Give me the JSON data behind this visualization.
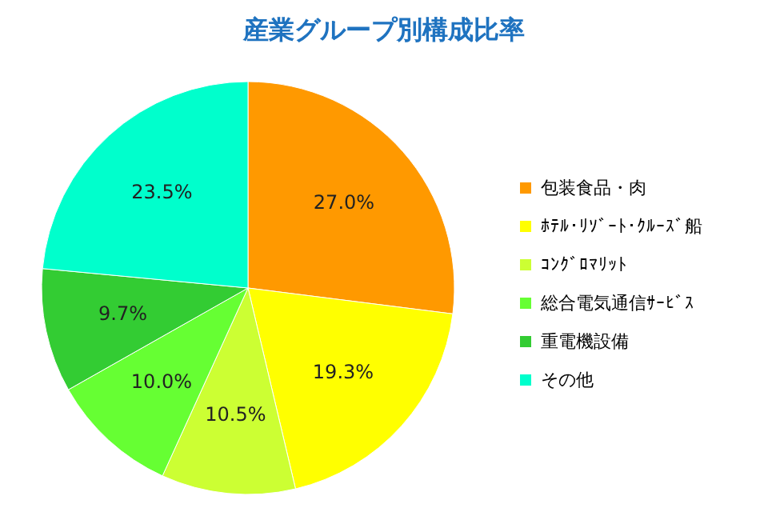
{
  "chart_data": {
    "type": "pie",
    "title": "産業グループ別構成比率",
    "categories": [
      "包装食品・肉",
      "ﾎﾃﾙ･ﾘｿﾞｰﾄ･ｸﾙｰｽﾞ船",
      "ｺﾝｸﾞﾛﾏﾘｯﾄ",
      "総合電気通信ｻｰﾋﾞｽ",
      "重電機設備",
      "その他"
    ],
    "values": [
      27.0,
      19.3,
      10.5,
      10.0,
      9.7,
      23.5
    ],
    "colors": [
      "#ff9900",
      "#ffff00",
      "#ccff33",
      "#66ff33",
      "#33cc33",
      "#00ffcc"
    ],
    "value_labels": [
      "27.0%",
      "19.3%",
      "10.5%",
      "10.0%",
      "9.7%",
      "23.5%"
    ],
    "legend": "right"
  }
}
